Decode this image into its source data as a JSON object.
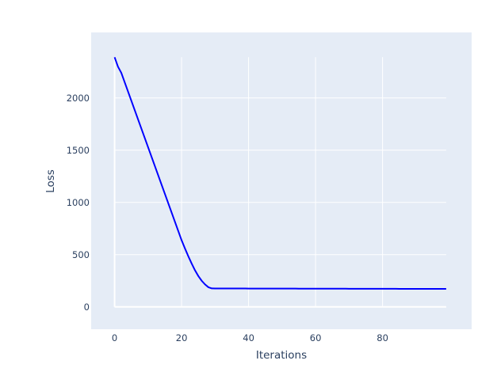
{
  "chart_data": {
    "type": "line",
    "title": "",
    "xlabel": "Iterations",
    "ylabel": "Loss",
    "xlim": [
      -7,
      106.6
    ],
    "ylim": [
      -214,
      2627
    ],
    "x_ticks": [
      0,
      20,
      40,
      60,
      80
    ],
    "y_ticks": [
      0,
      500,
      1000,
      1500,
      2000
    ],
    "grid": true,
    "colors": {
      "background": "#e5ecf6",
      "line": "#0000ff",
      "grid": "#ffffff",
      "text": "#2a3f5f"
    },
    "series": [
      {
        "x_start": 0,
        "values": [
          2390,
          2300,
          2240,
          2151,
          2062,
          1973,
          1884,
          1795,
          1706,
          1617,
          1528,
          1439,
          1350,
          1261,
          1172,
          1083,
          994,
          905,
          816,
          727,
          638,
          560,
          485,
          415,
          350,
          295,
          250,
          215,
          188,
          177,
          176,
          176,
          176,
          176,
          176,
          176,
          176,
          176,
          176,
          176,
          175,
          175,
          175,
          175,
          175,
          175,
          175,
          175,
          175,
          175,
          175,
          175,
          175,
          175,
          175,
          174,
          174,
          174,
          174,
          174,
          174,
          174,
          174,
          174,
          174,
          174,
          174,
          174,
          174,
          174,
          173,
          173,
          173,
          173,
          173,
          173,
          173,
          173,
          173,
          173,
          173,
          173,
          173,
          173,
          173,
          172,
          172,
          172,
          172,
          172,
          172,
          172,
          172,
          172,
          172,
          172,
          172,
          172,
          172,
          172
        ]
      }
    ]
  }
}
